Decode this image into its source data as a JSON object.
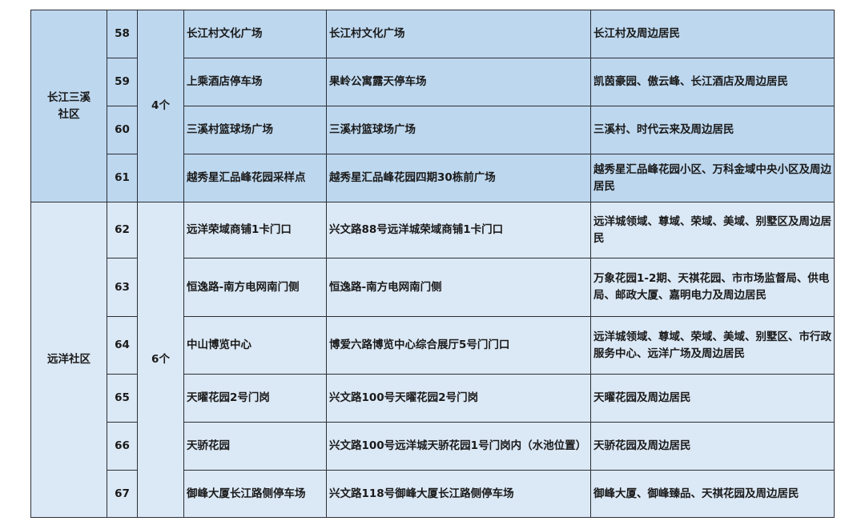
{
  "groups": [
    {
      "community": "长江三溪社区",
      "count": "4个",
      "rows": [
        {
          "no": "58",
          "name": "长江村文化广场",
          "location": "长江村文化广场",
          "coverage": "长江村及周边居民"
        },
        {
          "no": "59",
          "name": "上乘酒店停车场",
          "location": "果岭公寓露天停车场",
          "coverage": "凯茵豪园、傲云峰、长江酒店及周边居民"
        },
        {
          "no": "60",
          "name": "三溪村篮球场广场",
          "location": "三溪村篮球场广场",
          "coverage": "三溪村、时代云来及周边居民"
        },
        {
          "no": "61",
          "name": "越秀星汇品峰花园采样点",
          "location": "越秀星汇品峰花园四期30栋前广场",
          "coverage": "越秀星汇品峰花园小区、万科金域中央小区及周边居民"
        }
      ]
    },
    {
      "community": "远洋社区",
      "count": "6个",
      "rows": [
        {
          "no": "62",
          "name": "远洋荣域商铺1卡门口",
          "location": "兴文路88号远洋城荣域商铺1卡门口",
          "coverage": "远洋城领域、尊域、荣域、美域、别墅区及周边居民"
        },
        {
          "no": "63",
          "name": "恒逸路-南方电网南门侧",
          "location": "恒逸路-南方电网南门侧",
          "coverage": "万象花园1-2期、天祺花园、市市场监督局、供电局、邮政大厦、嘉明电力及周边居民"
        },
        {
          "no": "64",
          "name": "中山博览中心",
          "location": "博爱六路博览中心综合展厅5号门门口",
          "coverage": "远洋城领域、尊域、荣域、美域、别墅区、市行政服务中心、远洋广场及周边居民"
        },
        {
          "no": "65",
          "name": "天曜花园2号门岗",
          "location": "兴文路100号天曜花园2号门岗",
          "coverage": "天曜花园及周边居民"
        },
        {
          "no": "66",
          "name": "天骄花园",
          "location": "兴文路100号远洋城天骄花园1号门岗内（水池位置）",
          "coverage": "天骄花园及周边居民"
        },
        {
          "no": "67",
          "name": "御峰大厦长江路侧停车场",
          "location": "兴文路118号御峰大厦长江路侧停车场",
          "coverage": "御峰大厦、御峰臻品、天祺花园及周边居民"
        }
      ]
    }
  ],
  "colors": {
    "group1_bg": "#bdd7ee",
    "group2_bg": "#dbe8f5",
    "border": "#2b2f36"
  }
}
